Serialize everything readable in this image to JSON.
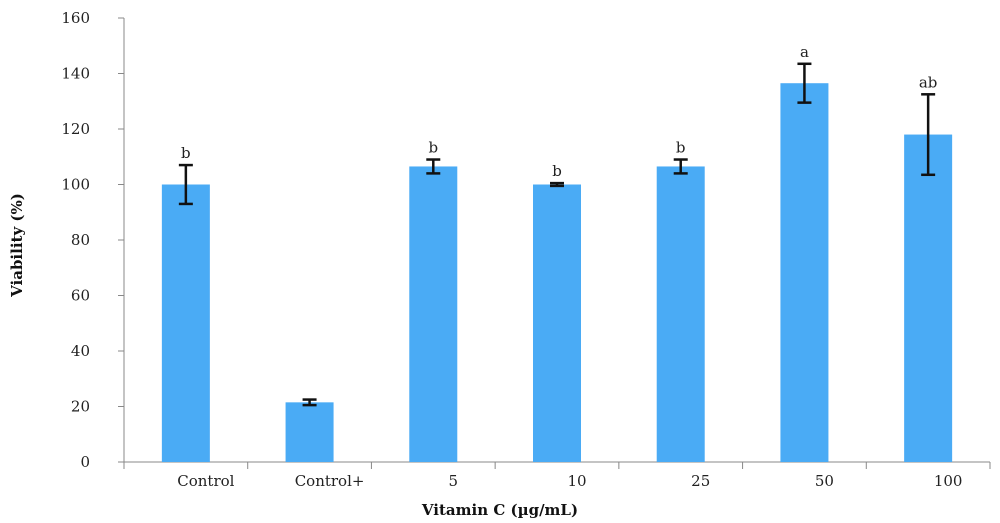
{
  "chart_data": {
    "type": "bar",
    "title": "",
    "xlabel": "Vitamin C (µg/mL)",
    "ylabel": "Viability (%)",
    "ylim": [
      0,
      160
    ],
    "yticks": [
      0,
      20,
      40,
      60,
      80,
      100,
      120,
      140,
      160
    ],
    "grid": false,
    "legend": "none",
    "categories": [
      "Control",
      "Control+",
      "5",
      "10",
      "25",
      "50",
      "100"
    ],
    "values": [
      100,
      21.5,
      106.5,
      100,
      106.5,
      136.5,
      118
    ],
    "error": [
      7,
      1,
      2.5,
      0.5,
      2.5,
      7,
      14.5
    ],
    "significance": [
      "b",
      "",
      "b",
      "b",
      "b",
      "a",
      "ab"
    ],
    "bar_color": "#4aabf5",
    "error_color": "#111111",
    "axis_color": "#888888"
  }
}
